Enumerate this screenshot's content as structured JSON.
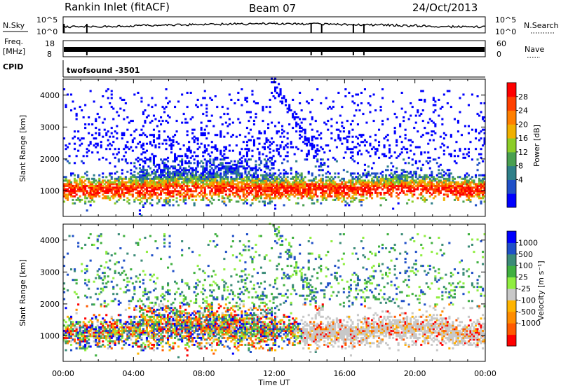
{
  "header": {
    "station": "Rankin Inlet (fitACF)",
    "beam": "Beam 07",
    "date": "24/Oct/2013"
  },
  "strips": {
    "nsky_label": "N.Sky",
    "nsky_ticks": [
      "10^5",
      "10^0"
    ],
    "nsearch_label": "N.Search",
    "freq_label_1": "Freq.",
    "freq_label_2": "[MHz]",
    "freq_ticks": [
      "18",
      "8"
    ],
    "nave_label": "Nave",
    "nave_ticks": [
      "60",
      "0"
    ],
    "cpid_label": "CPID",
    "cpid_value": "twofsound -3501"
  },
  "colors": {
    "power": [
      "#0000ff",
      "#2050c8",
      "#2f7f88",
      "#4aa050",
      "#8ccd28",
      "#f0b000",
      "#ff7f00",
      "#ff4000",
      "#ff0000"
    ],
    "velocity": [
      "#ff0000",
      "#ff5a00",
      "#ff8c00",
      "#ffb400",
      "#c8c8c8",
      "#90ee40",
      "#40b040",
      "#3c8c78",
      "#2050c8",
      "#0000ff"
    ]
  },
  "chart_data": [
    {
      "type": "heatmap",
      "panel": "power",
      "ylabel": "Slant Range [km]",
      "yticks": [
        "4000",
        "3000",
        "2000",
        "1000"
      ],
      "ylim": [
        200,
        4500
      ],
      "xticks": [
        "00:00",
        "04:00",
        "08:00",
        "12:00",
        "16:00",
        "20:00",
        "00:00"
      ],
      "xlim_hours": [
        0,
        24
      ],
      "colorbar_label": "Power [dB]",
      "colorbar_ticks": [
        "28",
        "24",
        "20",
        "16",
        "12",
        "8",
        "4"
      ],
      "colorbar_range": [
        0,
        32
      ]
    },
    {
      "type": "heatmap",
      "panel": "velocity",
      "ylabel": "Slant Range [km]",
      "yticks": [
        "4000",
        "3000",
        "2000",
        "1000"
      ],
      "ylim": [
        200,
        4500
      ],
      "xticks": [
        "00:00",
        "04:00",
        "08:00",
        "12:00",
        "16:00",
        "20:00",
        "00:00"
      ],
      "xlim_hours": [
        0,
        24
      ],
      "xlabel": "Time UT",
      "colorbar_label": "Velocity [m s⁻¹]",
      "colorbar_ticks": [
        "1000",
        "500",
        "100",
        "25",
        "-25",
        "-100",
        "-500",
        "-1000"
      ]
    }
  ]
}
